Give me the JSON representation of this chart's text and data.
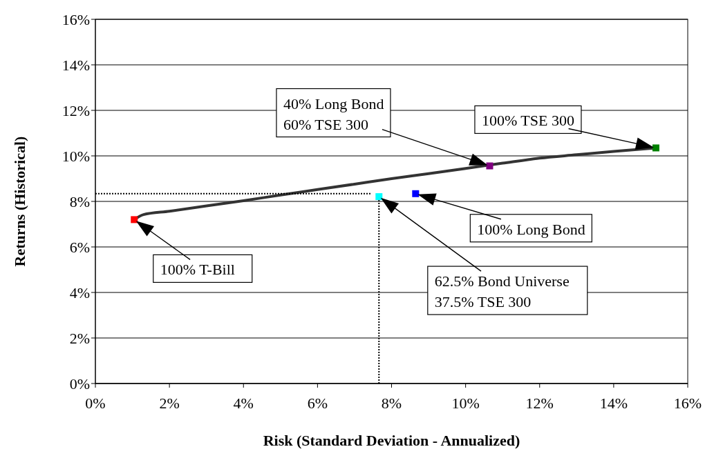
{
  "chart_data": {
    "type": "scatter",
    "xlabel": "Risk (Standard Deviation - Annualized)",
    "ylabel": "Returns (Historical)",
    "xlim": [
      0,
      16
    ],
    "ylim": [
      0,
      16
    ],
    "xticks": [
      {
        "value": 0,
        "label": "0%"
      },
      {
        "value": 2,
        "label": "2%"
      },
      {
        "value": 4,
        "label": "4%"
      },
      {
        "value": 6,
        "label": "6%"
      },
      {
        "value": 8,
        "label": "8%"
      },
      {
        "value": 10,
        "label": "10%"
      },
      {
        "value": 12,
        "label": "12%"
      },
      {
        "value": 14,
        "label": "14%"
      },
      {
        "value": 16,
        "label": "16%"
      }
    ],
    "yticks": [
      {
        "value": 0,
        "label": "0%"
      },
      {
        "value": 2,
        "label": "2%"
      },
      {
        "value": 4,
        "label": "4%"
      },
      {
        "value": 6,
        "label": "6%"
      },
      {
        "value": 8,
        "label": "8%"
      },
      {
        "value": 10,
        "label": "10%"
      },
      {
        "value": 12,
        "label": "12%"
      },
      {
        "value": 14,
        "label": "14%"
      },
      {
        "value": 16,
        "label": "16%"
      }
    ],
    "grid": "y",
    "marker": "square",
    "series": [
      {
        "type": "line",
        "marker": "none",
        "color": "#333333",
        "x": [
          1.05,
          1.3,
          2,
          3,
          4,
          5,
          6,
          7,
          8,
          9,
          10,
          11,
          12,
          13,
          14,
          15.14
        ],
        "values": [
          7.2,
          7.42,
          7.57,
          7.8,
          8.03,
          8.28,
          8.52,
          8.76,
          9.0,
          9.22,
          9.45,
          9.68,
          9.9,
          10.05,
          10.2,
          10.35
        ]
      },
      {
        "type": "line",
        "marker": "none",
        "line_style": "dotted",
        "color": "#000000",
        "x": [
          0,
          7.45
        ],
        "values": [
          8.34,
          8.34
        ]
      },
      {
        "type": "line",
        "marker": "none",
        "line_style": "dotted",
        "color": "#000000",
        "x": [
          7.66,
          7.66
        ],
        "values": [
          0,
          8.1
        ]
      },
      {
        "x": [
          1.05,
          7.66,
          8.65,
          10.65,
          15.14
        ],
        "values": [
          7.2,
          8.21,
          8.34,
          9.56,
          10.35
        ],
        "colors": [
          "#ff0000",
          "#00ffff",
          "#0000ff",
          "#800080",
          "#008000"
        ]
      }
    ],
    "annotations": [
      "100% TSE 300",
      "40% Long Bond\n60% TSE 300",
      "100% Long Bond",
      "100% T-Bill",
      "62.5% Bond Universe\n37.5% TSE 300"
    ]
  }
}
